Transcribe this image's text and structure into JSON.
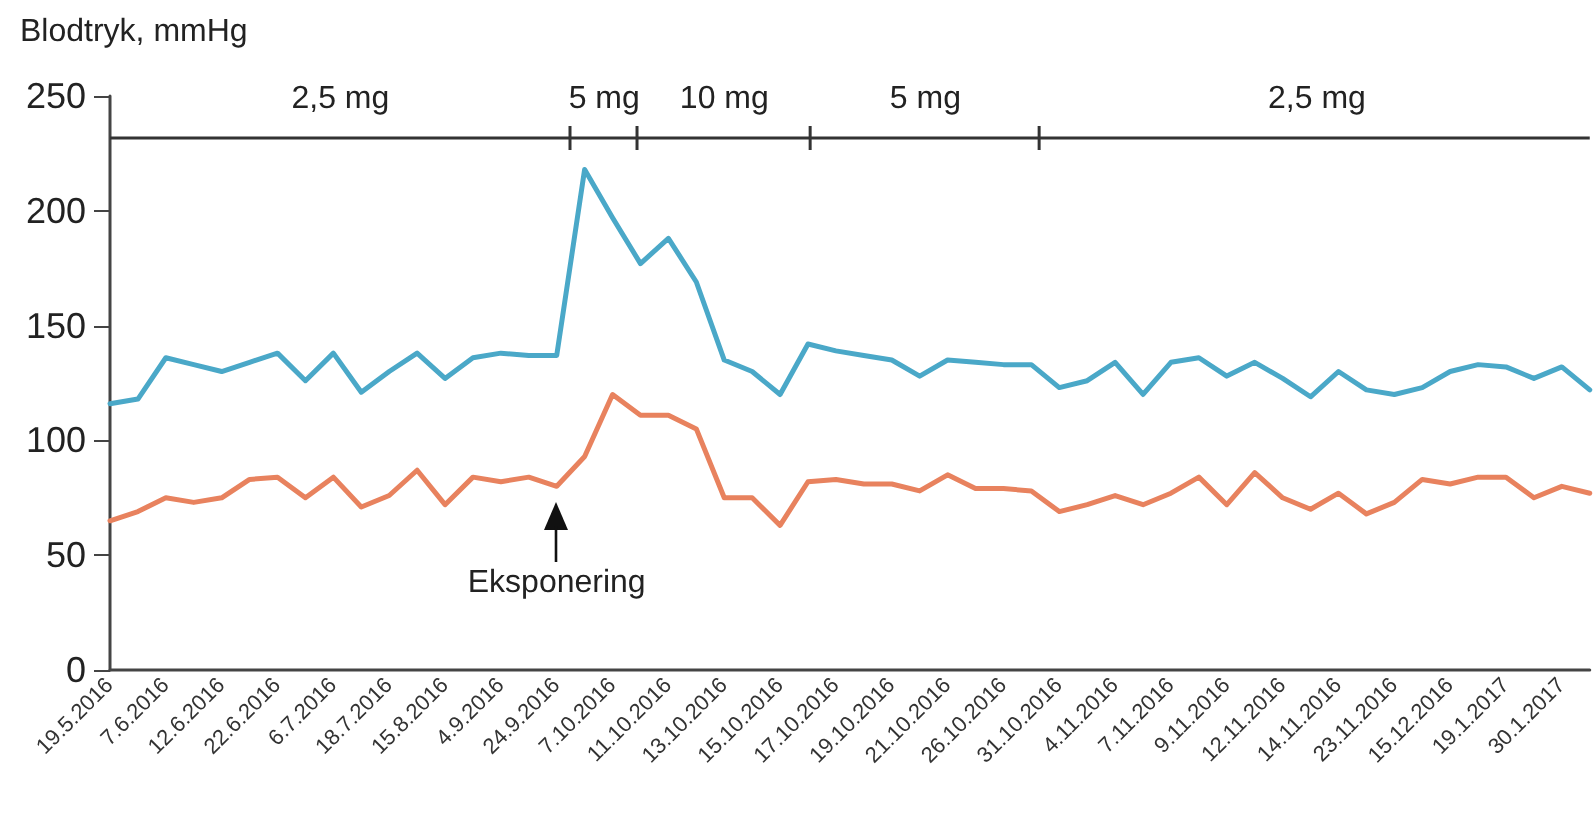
{
  "chart_data": {
    "type": "line",
    "ylabel": "Blodtryk, mmHg",
    "categories": [
      "19.5.2016",
      null,
      "7.6.2016",
      null,
      "12.6.2016",
      null,
      "22.6.2016",
      null,
      "6.7.2016",
      null,
      "18.7.2016",
      null,
      "15.8.2016",
      null,
      "4.9.2016",
      null,
      "24.9.2016",
      null,
      "7.10.2016",
      null,
      "11.10.2016",
      null,
      "13.10.2016",
      null,
      "15.10.2016",
      null,
      "17.10.2016",
      null,
      "19.10.2016",
      null,
      "21.10.2016",
      null,
      "26.10.2016",
      null,
      "31.10.2016",
      null,
      "4.11.2016",
      null,
      "7.11.2016",
      null,
      "9.11.2016",
      null,
      "12.11.2016",
      null,
      "14.11.2016",
      null,
      "23.11.2016",
      null,
      "15.12.2016",
      null,
      "19.1.2017",
      null,
      "30.1.2017",
      null
    ],
    "series": [
      {
        "color": "#4aa8c8",
        "values": [
          116,
          118,
          136,
          133,
          130,
          134,
          138,
          126,
          138,
          121,
          130,
          138,
          127,
          136,
          138,
          137,
          137,
          218,
          197,
          177,
          188,
          169,
          135,
          130,
          120,
          142,
          139,
          137,
          135,
          128,
          135,
          134,
          133,
          133,
          123,
          126,
          134,
          120,
          134,
          136,
          128,
          134,
          127,
          119,
          130,
          122,
          120,
          123,
          130,
          133,
          132,
          127,
          132,
          122
        ]
      },
      {
        "color": "#e8825e",
        "values": [
          65,
          69,
          75,
          73,
          75,
          83,
          84,
          75,
          84,
          71,
          76,
          87,
          72,
          84,
          82,
          84,
          80,
          93,
          120,
          111,
          111,
          105,
          75,
          75,
          63,
          82,
          83,
          81,
          81,
          78,
          85,
          79,
          79,
          78,
          69,
          72,
          76,
          72,
          77,
          84,
          72,
          86,
          75,
          70,
          77,
          68,
          73,
          83,
          81,
          84,
          84,
          75,
          80,
          77
        ]
      }
    ],
    "ylim": [
      0,
      250
    ],
    "yticks": [
      0,
      50,
      100,
      150,
      200,
      250
    ],
    "ref_lines": [
      {
        "axis": "y",
        "value": 232,
        "color": "#333333",
        "line_style": "solid"
      }
    ],
    "grid": false,
    "marker": "none",
    "line_style": "solid",
    "annotations": [
      "2,5 mg",
      "5 mg",
      "10 mg",
      "5 mg",
      "2,5 mg",
      {
        "text": "Eksponering",
        "x": "24.9.2016",
        "y": 80
      }
    ]
  }
}
